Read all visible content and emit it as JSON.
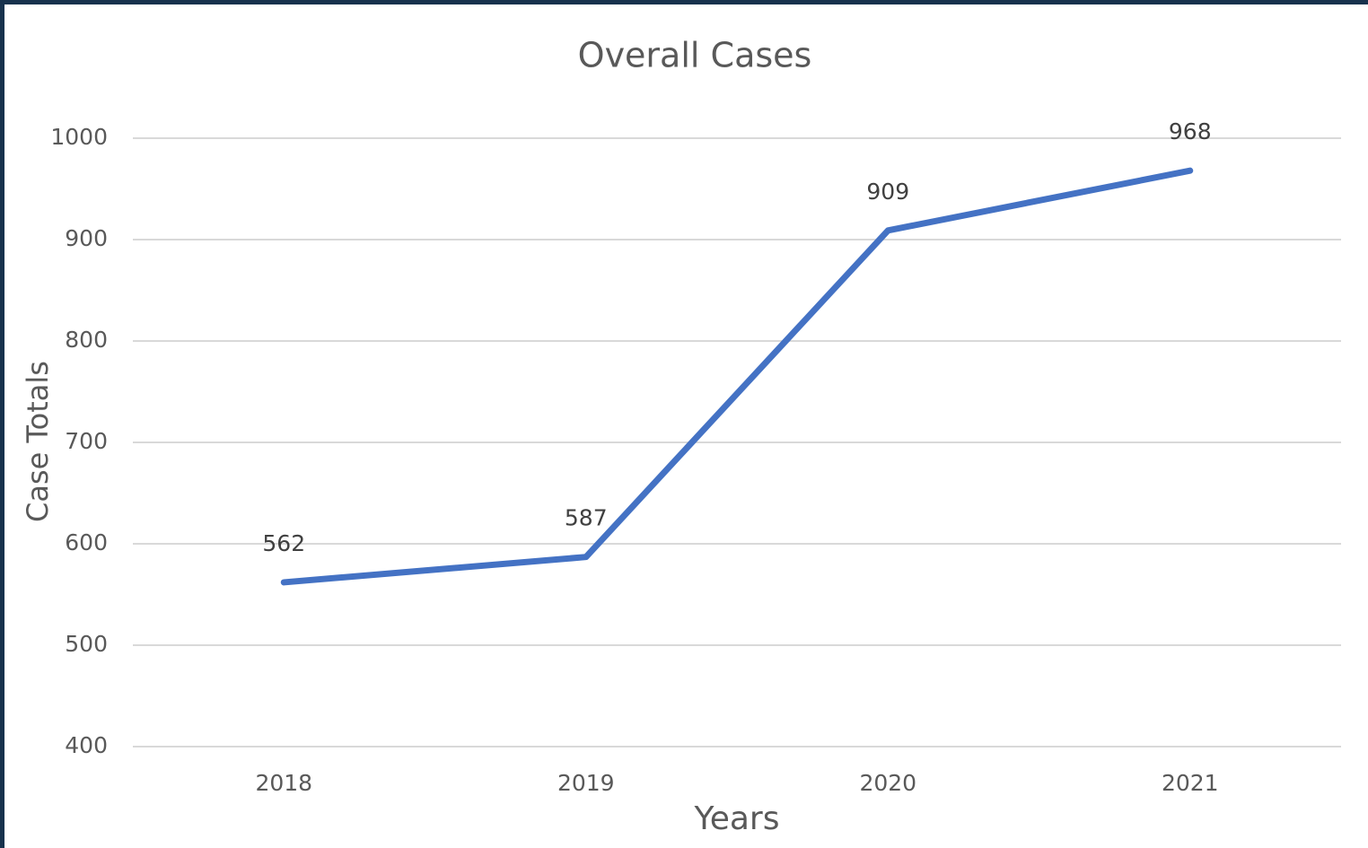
{
  "chart_data": {
    "type": "line",
    "title": "Overall Cases",
    "x_label": "Years",
    "y_label": "Case Totals",
    "categories": [
      "2018",
      "2019",
      "2020",
      "2021"
    ],
    "series": [
      {
        "name": "Cases",
        "color": "#4472c4",
        "values": [
          562,
          587,
          909,
          968
        ]
      }
    ],
    "ylim": [
      400,
      1000
    ],
    "yticks": [
      400,
      500,
      600,
      700,
      800,
      900,
      1000
    ],
    "grid": true
  }
}
